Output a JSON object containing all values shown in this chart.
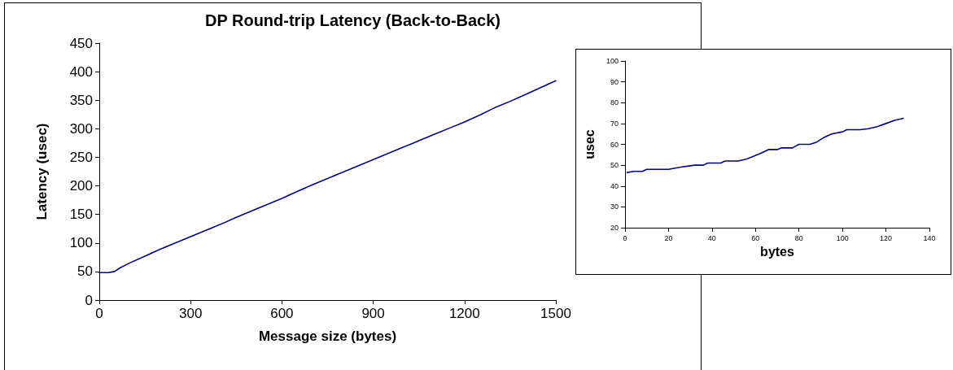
{
  "chart_data": [
    {
      "type": "line",
      "title": "DP Round-trip Latency (Back-to-Back)",
      "xlabel": "Message size (bytes)",
      "ylabel": "Latency (usec)",
      "xlim": [
        0,
        1500
      ],
      "xticks": [
        0,
        300,
        600,
        900,
        1200,
        1500
      ],
      "ylim": [
        0,
        450
      ],
      "yticks": [
        0,
        50,
        100,
        150,
        200,
        250,
        300,
        350,
        400,
        450
      ],
      "grid": false,
      "marker": "none",
      "line_style": "solid",
      "series": [
        {
          "color": "#000080",
          "x": [
            0,
            30,
            50,
            70,
            100,
            150,
            200,
            250,
            300,
            350,
            400,
            450,
            500,
            550,
            600,
            650,
            700,
            750,
            800,
            850,
            900,
            950,
            1000,
            1050,
            1100,
            1150,
            1200,
            1250,
            1300,
            1350,
            1400,
            1450,
            1500
          ],
          "values": [
            48,
            48,
            50,
            57,
            65,
            77,
            89,
            100,
            111,
            122,
            133,
            145,
            156,
            167,
            178,
            190,
            202,
            213,
            224,
            235,
            246,
            257,
            268,
            279,
            290,
            301,
            312,
            324,
            337,
            348,
            360,
            372,
            384
          ]
        }
      ]
    },
    {
      "type": "line",
      "xlabel": "bytes",
      "ylabel": "usec",
      "xlim": [
        0,
        140
      ],
      "xticks": [
        0,
        20,
        40,
        60,
        80,
        100,
        120,
        140
      ],
      "ylim": [
        20,
        100
      ],
      "yticks": [
        20,
        30,
        40,
        50,
        60,
        70,
        80,
        90,
        100
      ],
      "grid": false,
      "marker": "none",
      "line_style": "solid",
      "series": [
        {
          "color": "#000080",
          "x": [
            1,
            4,
            8,
            10,
            20,
            25,
            32,
            36,
            38,
            44,
            46,
            52,
            56,
            62,
            66,
            70,
            72,
            77,
            80,
            85,
            88,
            91,
            95,
            100,
            102,
            108,
            112,
            116,
            120,
            124,
            128
          ],
          "values": [
            46.5,
            47,
            47,
            48,
            48,
            49,
            50,
            50,
            51,
            51,
            52,
            52,
            53,
            55.5,
            57.5,
            57.5,
            58.3,
            58.3,
            60,
            60,
            61,
            63,
            65,
            66,
            67,
            67,
            67.5,
            68.5,
            70,
            71.5,
            72.5
          ]
        }
      ]
    }
  ]
}
